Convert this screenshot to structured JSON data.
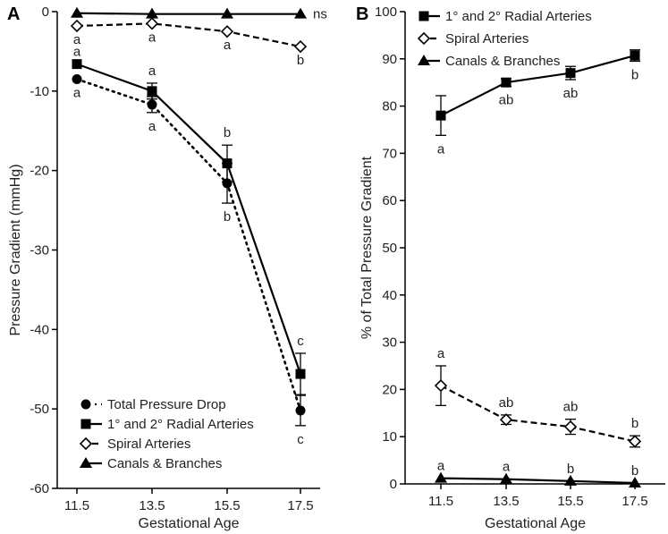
{
  "chart_data": [
    {
      "type": "line",
      "panel_label": "A",
      "xlabel": "Gestational Age",
      "ylabel": "Pressure Gradient (mmHg)",
      "categories": [
        "11.5",
        "13.5",
        "15.5",
        "17.5"
      ],
      "ylim": [
        -60,
        0
      ],
      "yticks": [
        "0",
        "-10",
        "-20",
        "-30",
        "-40",
        "-50",
        "-60"
      ],
      "series": [
        {
          "name": "Total Pressure Drop",
          "marker": "circle",
          "line": "dotted",
          "values": [
            -8.5,
            -11.7,
            -21.6,
            -50.2
          ],
          "errors": [
            0,
            1.0,
            2.5,
            1.9
          ],
          "labels": [
            "a",
            "a",
            "b",
            "c"
          ],
          "label_pos": [
            "below",
            "below",
            "below",
            "below"
          ]
        },
        {
          "name": "1° and 2° Radial Arteries",
          "marker": "square",
          "line": "solid",
          "values": [
            -6.6,
            -10.0,
            -19.1,
            -45.6
          ],
          "errors": [
            0,
            1.0,
            2.3,
            2.6
          ],
          "labels": [
            "a",
            "a",
            "b",
            "c"
          ],
          "label_pos": [
            "above",
            "above",
            "above",
            "above"
          ]
        },
        {
          "name": "Spiral Arteries",
          "marker": "diamond",
          "line": "dashed",
          "values": [
            -1.8,
            -1.5,
            -2.5,
            -4.4
          ],
          "errors": [
            0,
            0,
            0,
            0
          ],
          "labels": [
            "a",
            "a",
            "a",
            "b"
          ],
          "label_pos": [
            "below",
            "below",
            "below",
            "below"
          ]
        },
        {
          "name": "Canals & Branches",
          "marker": "triangle",
          "line": "solid",
          "values": [
            -0.2,
            -0.3,
            -0.3,
            -0.3
          ],
          "errors": [
            0,
            0,
            0,
            0
          ],
          "labels": [
            "",
            "",
            "",
            "ns"
          ],
          "label_pos": [
            "right",
            "right",
            "right",
            "right"
          ]
        }
      ],
      "legend": [
        "Total Pressure Drop",
        "1° and 2° Radial Arteries",
        "Spiral Arteries",
        "Canals & Branches"
      ],
      "legend_position": "bottom-left"
    },
    {
      "type": "line",
      "panel_label": "B",
      "xlabel": "Gestational Age",
      "ylabel": "% of Total Pressure Gradient",
      "categories": [
        "11.5",
        "13.5",
        "15.5",
        "17.5"
      ],
      "ylim": [
        0,
        100
      ],
      "yticks": [
        "0",
        "10",
        "20",
        "30",
        "40",
        "50",
        "60",
        "70",
        "80",
        "90",
        "100"
      ],
      "series": [
        {
          "name": "1° and 2° Radial Arteries",
          "marker": "square",
          "line": "solid",
          "values": [
            78.0,
            85.0,
            87.0,
            90.7
          ],
          "errors": [
            4.2,
            0.8,
            1.4,
            1.2
          ],
          "labels": [
            "a",
            "ab",
            "ab",
            "b"
          ],
          "label_pos": [
            "below",
            "below",
            "below",
            "below"
          ]
        },
        {
          "name": "Spiral Arteries",
          "marker": "diamond",
          "line": "dashed",
          "values": [
            20.8,
            13.6,
            12.1,
            9.0
          ],
          "errors": [
            4.2,
            1.0,
            1.6,
            1.2
          ],
          "labels": [
            "a",
            "ab",
            "ab",
            "b"
          ],
          "label_pos": [
            "above",
            "above",
            "above",
            "above"
          ]
        },
        {
          "name": "Canals & Branches",
          "marker": "triangle",
          "line": "solid",
          "values": [
            1.2,
            1.0,
            0.6,
            0.2
          ],
          "errors": [
            0,
            0,
            0,
            0
          ],
          "labels": [
            "a",
            "a",
            "b",
            "b"
          ],
          "label_pos": [
            "above",
            "above",
            "above",
            "above"
          ]
        }
      ],
      "legend": [
        "1° and 2° Radial Arteries",
        "Spiral Arteries",
        "Canals & Branches"
      ],
      "legend_position": "top-left"
    }
  ]
}
